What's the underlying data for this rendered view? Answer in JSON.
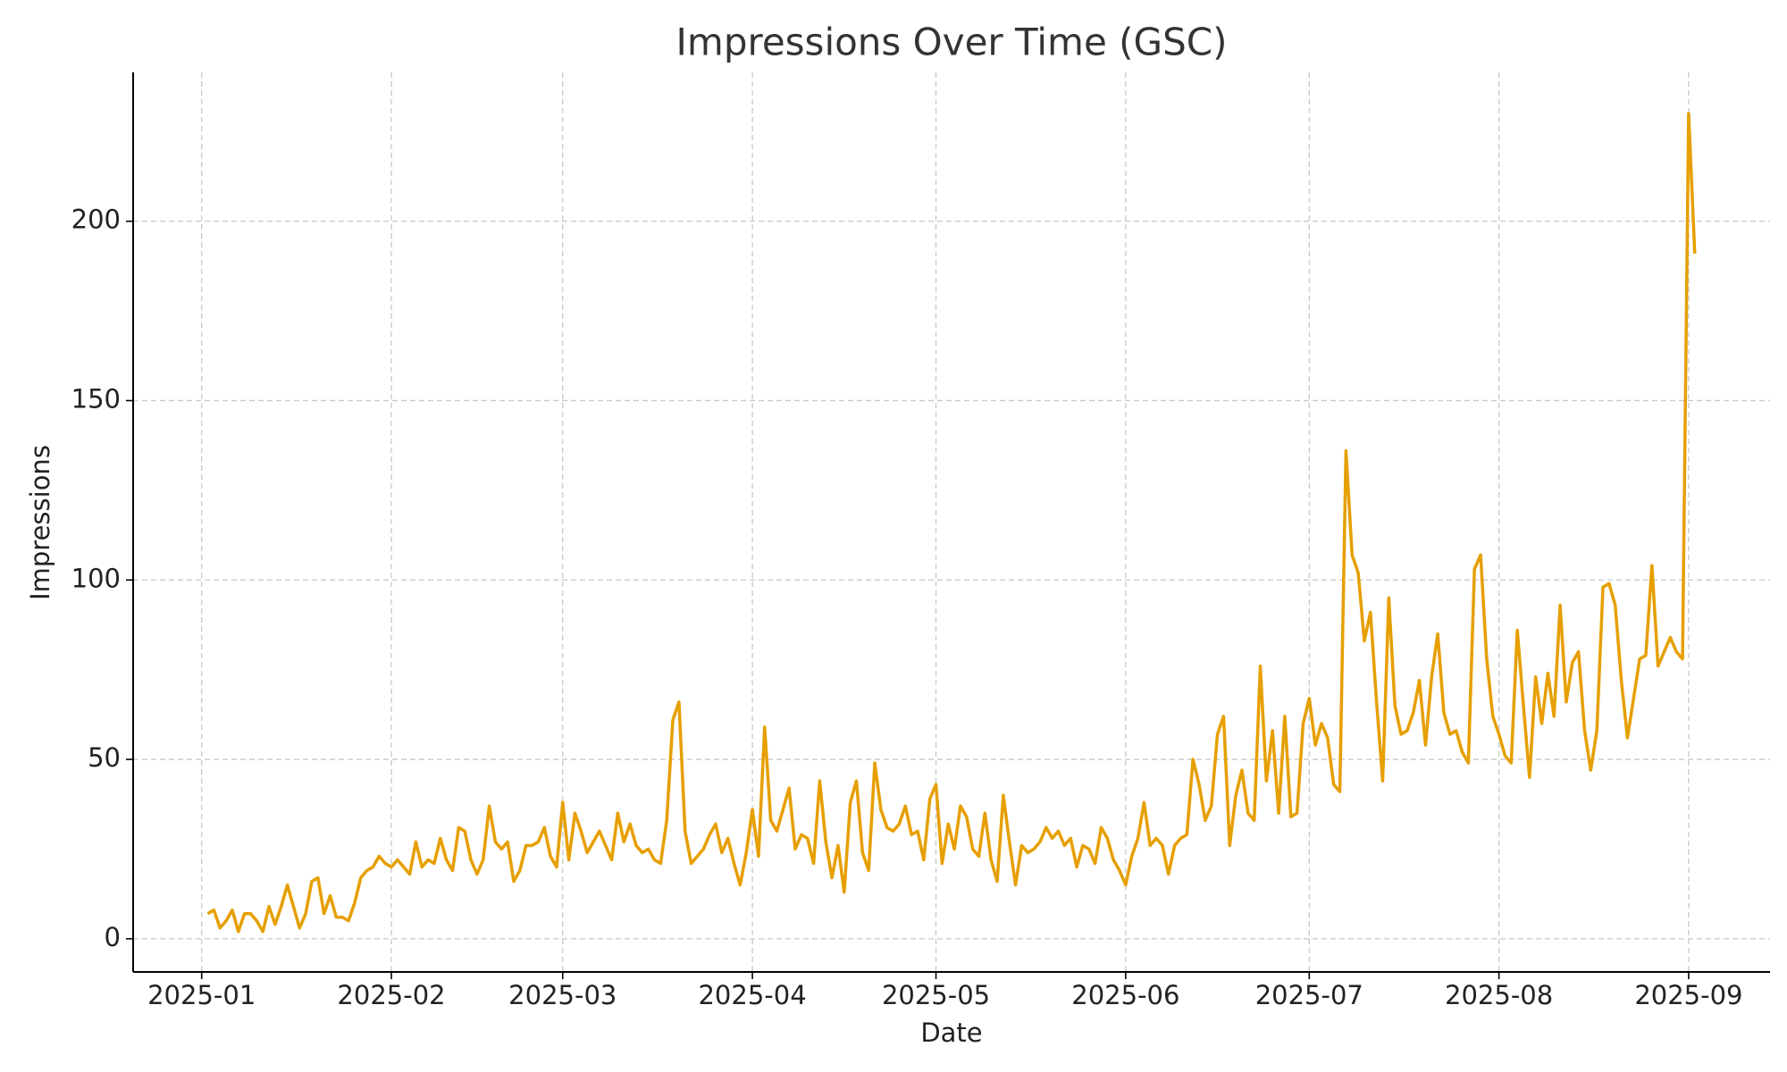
{
  "chart_data": {
    "type": "line",
    "title": "Impressions Over Time (GSC)",
    "x_label": "Date",
    "y_label": "Impressions",
    "color": "#e69f00",
    "grid": true,
    "x": [
      1,
      2,
      3,
      4,
      5,
      6,
      7,
      8,
      9,
      10,
      11,
      12,
      13,
      14,
      15,
      16,
      17,
      18,
      19,
      20,
      21,
      22,
      23,
      24,
      25,
      26,
      27,
      28,
      29,
      30,
      31,
      32,
      33,
      34,
      35,
      36,
      37,
      38,
      39,
      40,
      41,
      42,
      43,
      44,
      45,
      46,
      47,
      48,
      49,
      50,
      51,
      52,
      53,
      54,
      55,
      56,
      57,
      58,
      59,
      60,
      61,
      62,
      63,
      64,
      65,
      66,
      67,
      68,
      69,
      70,
      71,
      72,
      73,
      74,
      75,
      76,
      77,
      78,
      79,
      80,
      81,
      82,
      83,
      84,
      85,
      86,
      87,
      88,
      89,
      90,
      91,
      92,
      93,
      94,
      95,
      96,
      97,
      98,
      99,
      100,
      101,
      102,
      103,
      104,
      105,
      106,
      107,
      108,
      109,
      110,
      111,
      112,
      113,
      114,
      115,
      116,
      117,
      118,
      119,
      120,
      121,
      122,
      123,
      124,
      125,
      126,
      127,
      128,
      129,
      130,
      131,
      132,
      133,
      134,
      135,
      136,
      137,
      138,
      139,
      140,
      141,
      142,
      143,
      144,
      145,
      146,
      147,
      148,
      149,
      150,
      151,
      152,
      153,
      154,
      155,
      156,
      157,
      158,
      159,
      160,
      161,
      162,
      163,
      164,
      165,
      166,
      167,
      168,
      169,
      170,
      171,
      172,
      173,
      174,
      175,
      176,
      177,
      178,
      179,
      180,
      181,
      182,
      183,
      184,
      185,
      186,
      187,
      188,
      189,
      190,
      191,
      192,
      193,
      194,
      195,
      196,
      197,
      198,
      199,
      200,
      201,
      202,
      203,
      204,
      205,
      206,
      207,
      208,
      209,
      210,
      211,
      212,
      213,
      214,
      215,
      216,
      217,
      218,
      219,
      220,
      221,
      222,
      223,
      224,
      225,
      226,
      227,
      228,
      229,
      230,
      231,
      232,
      233,
      234,
      235,
      236,
      237,
      238,
      239,
      240,
      241,
      242,
      243,
      244
    ],
    "values": [
      7,
      8,
      3,
      5,
      8,
      2,
      7,
      7,
      5,
      2,
      9,
      4,
      9,
      15,
      9,
      3,
      7,
      16,
      17,
      7,
      12,
      6,
      6,
      5,
      10,
      17,
      19,
      20,
      23,
      21,
      20,
      22,
      20,
      18,
      27,
      20,
      22,
      21,
      28,
      22,
      19,
      31,
      30,
      22,
      18,
      22,
      37,
      27,
      25,
      27,
      16,
      19,
      26,
      26,
      27,
      31,
      23,
      20,
      38,
      22,
      35,
      30,
      24,
      27,
      30,
      26,
      22,
      35,
      27,
      32,
      26,
      24,
      25,
      22,
      21,
      33,
      61,
      66,
      30,
      21,
      23,
      25,
      29,
      32,
      24,
      28,
      21,
      15,
      24,
      36,
      23,
      59,
      33,
      30,
      36,
      42,
      25,
      29,
      28,
      21,
      44,
      27,
      17,
      26,
      13,
      38,
      44,
      24,
      19,
      49,
      36,
      31,
      30,
      32,
      37,
      29,
      30,
      22,
      39,
      43,
      21,
      32,
      25,
      37,
      34,
      25,
      23,
      35,
      22,
      16,
      40,
      27,
      15,
      26,
      24,
      25,
      27,
      31,
      28,
      30,
      26,
      28,
      20,
      26,
      25,
      21,
      31,
      28,
      22,
      19,
      15,
      23,
      28,
      38,
      26,
      28,
      26,
      18,
      26,
      28,
      29,
      50,
      43,
      33,
      37,
      57,
      62,
      26,
      40,
      47,
      35,
      33,
      76,
      44,
      58,
      35,
      62,
      34,
      35,
      60,
      67,
      54,
      60,
      56,
      43,
      41,
      136,
      107,
      102,
      83,
      91,
      66,
      44,
      95,
      65,
      57,
      58,
      63,
      72,
      54,
      73,
      85,
      63,
      57,
      58,
      52,
      49,
      103,
      107,
      78,
      62,
      57,
      51,
      49,
      86,
      65,
      45,
      73,
      60,
      74,
      62,
      93,
      66,
      77,
      80,
      58,
      47,
      58,
      98,
      99,
      93,
      72,
      56,
      67,
      78,
      79,
      104,
      76,
      80,
      84,
      80,
      78,
      230,
      191
    ],
    "xlim": [
      -11.2,
      256.3
    ],
    "xticks": [
      {
        "value": 0,
        "label": "2025-01"
      },
      {
        "value": 31,
        "label": "2025-02"
      },
      {
        "value": 59,
        "label": "2025-03"
      },
      {
        "value": 90,
        "label": "2025-04"
      },
      {
        "value": 120,
        "label": "2025-05"
      },
      {
        "value": 151,
        "label": "2025-06"
      },
      {
        "value": 181,
        "label": "2025-07"
      },
      {
        "value": 212,
        "label": "2025-08"
      },
      {
        "value": 243,
        "label": "2025-09"
      }
    ],
    "ylim": [
      -9.25,
      241.5
    ],
    "yticks": [
      0,
      50,
      100,
      150,
      200
    ]
  }
}
